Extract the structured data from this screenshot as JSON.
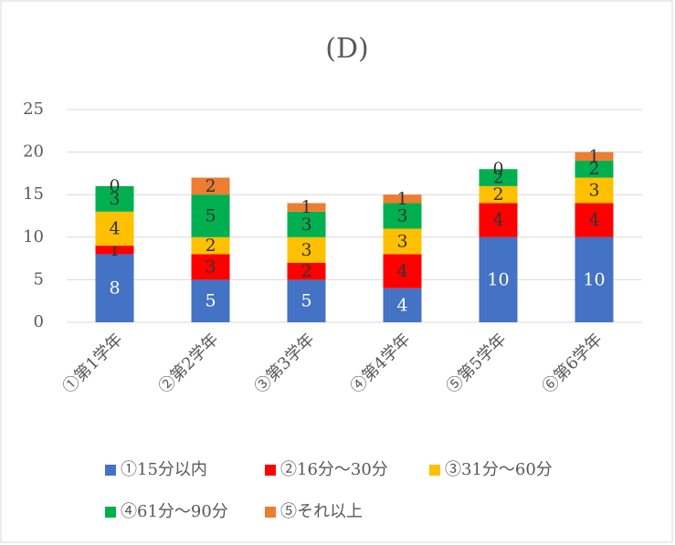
{
  "chart_data": {
    "type": "stacked_bar",
    "title": "(D)",
    "categories": [
      "①第1学年",
      "②第2学年",
      "③第3学年",
      "④第4学年",
      "⑤第5学年",
      "⑥第6学年"
    ],
    "series": [
      {
        "name": "①15分以内",
        "color": "#4472c4",
        "values": [
          8,
          5,
          5,
          4,
          10,
          10
        ]
      },
      {
        "name": "②16分～30分",
        "color": "#ff0000",
        "values": [
          1,
          3,
          2,
          4,
          4,
          4
        ]
      },
      {
        "name": "③31分～60分",
        "color": "#ffc000",
        "values": [
          4,
          2,
          3,
          3,
          2,
          3
        ]
      },
      {
        "name": "④61分～90分",
        "color": "#00b050",
        "values": [
          3,
          5,
          3,
          3,
          2,
          2
        ]
      },
      {
        "name": "⑤それ以上",
        "color": "#ed7d31",
        "values": [
          0,
          2,
          1,
          1,
          0,
          1
        ]
      }
    ],
    "ylim": [
      0,
      25
    ],
    "yticks": [
      0,
      5,
      10,
      15,
      20,
      25
    ],
    "grid": true,
    "legend": "bottom"
  }
}
